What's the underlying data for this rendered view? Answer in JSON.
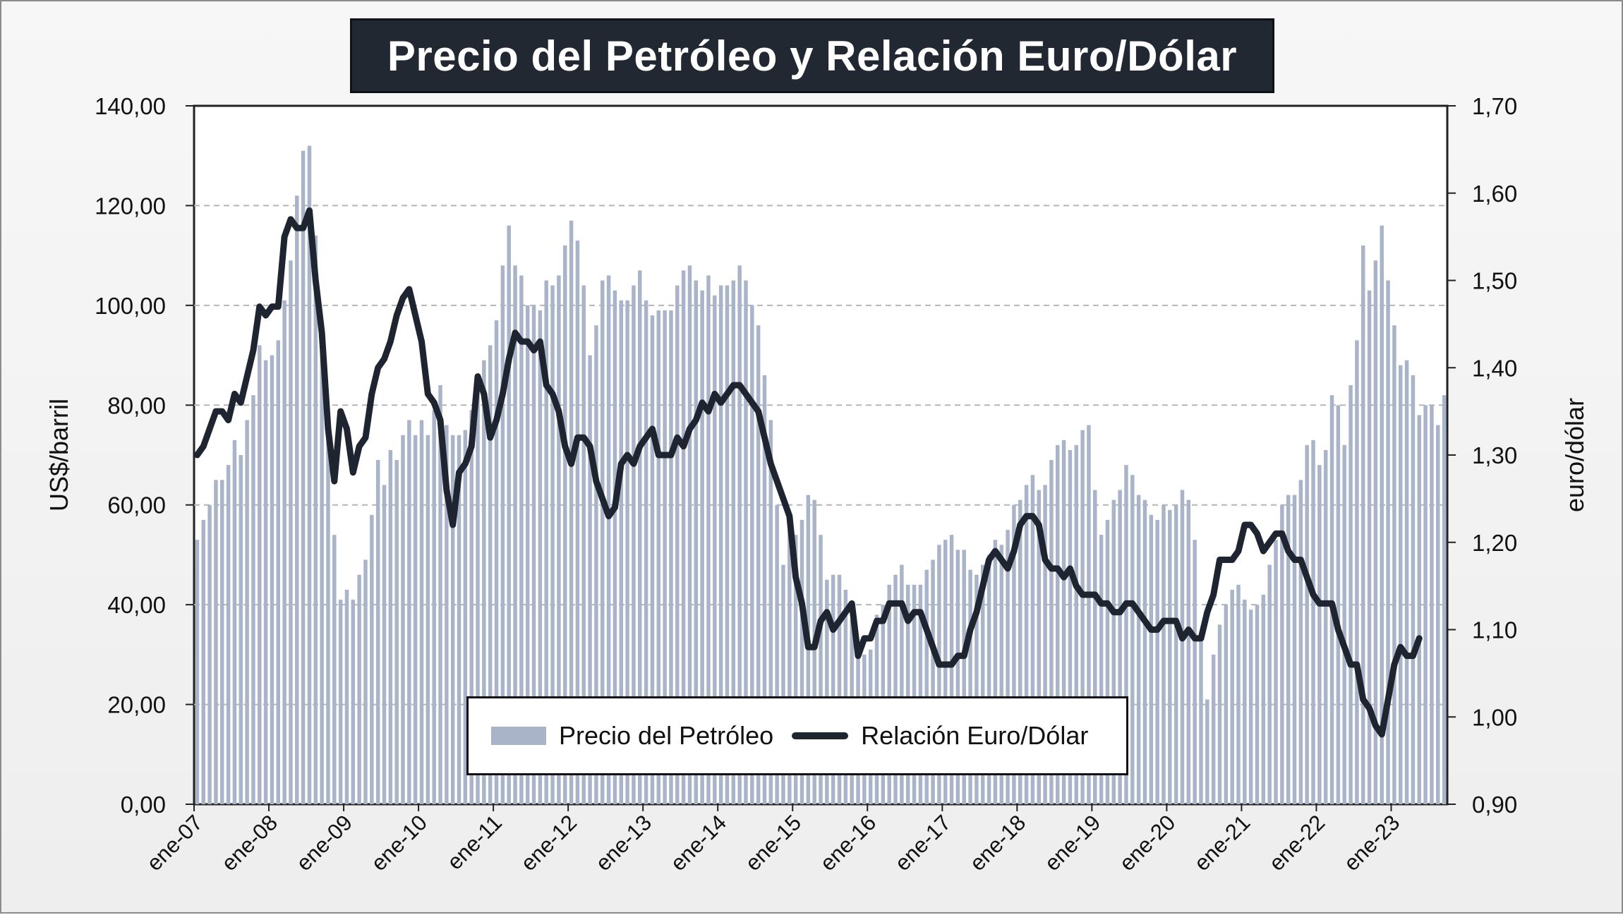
{
  "title": "Precio del Petróleo y Relación Euro/Dólar",
  "chart_data": {
    "type": "bar+line",
    "title": "Precio del Petróleo y Relación Euro/Dólar",
    "x_tick_labels": [
      "ene-07",
      "ene-08",
      "ene-09",
      "ene-10",
      "ene-11",
      "ene-12",
      "ene-13",
      "ene-14",
      "ene-15",
      "ene-16",
      "ene-17",
      "ene-18",
      "ene-19",
      "ene-20",
      "ene-21",
      "ene-22",
      "ene-23"
    ],
    "y_left": {
      "label": "US$/barril",
      "range": [
        0,
        140
      ],
      "ticks": [
        "0,00",
        "20,00",
        "40,00",
        "60,00",
        "80,00",
        "100,00",
        "120,00",
        "140,00"
      ]
    },
    "y_right": {
      "label": "euro/dólar",
      "range": [
        0.9,
        1.7
      ],
      "ticks": [
        "0,90",
        "1,00",
        "1,10",
        "1,20",
        "1,30",
        "1,40",
        "1,50",
        "1,60",
        "1,70"
      ]
    },
    "grid": "horizontal dashed",
    "legend": "bottom-center",
    "series": [
      {
        "name": "Precio del Petróleo",
        "kind": "bar",
        "axis": "left",
        "color": "#aab4c8",
        "values": [
          53,
          57,
          60,
          65,
          65,
          68,
          73,
          70,
          77,
          82,
          92,
          89,
          90,
          93,
          101,
          109,
          122,
          131,
          132,
          114,
          95,
          74,
          54,
          41,
          43,
          41,
          46,
          49,
          58,
          69,
          64,
          71,
          69,
          74,
          77,
          74,
          77,
          74,
          79,
          84,
          76,
          74,
          74,
          75,
          79,
          84,
          89,
          92,
          97,
          108,
          116,
          108,
          106,
          100,
          100,
          99,
          105,
          104,
          106,
          112,
          117,
          113,
          104,
          90,
          96,
          105,
          106,
          103,
          101,
          101,
          104,
          107,
          101,
          98,
          99,
          99,
          99,
          104,
          107,
          108,
          105,
          103,
          106,
          102,
          104,
          104,
          105,
          108,
          105,
          100,
          96,
          86,
          77,
          60,
          48,
          55,
          54,
          57,
          62,
          61,
          54,
          45,
          46,
          46,
          43,
          37,
          31,
          30,
          31,
          38,
          40,
          44,
          46,
          48,
          44,
          44,
          44,
          47,
          49,
          52,
          53,
          54,
          51,
          51,
          47,
          46,
          48,
          50,
          53,
          52,
          55,
          60,
          61,
          64,
          66,
          63,
          64,
          69,
          72,
          73,
          71,
          72,
          75,
          76,
          63,
          54,
          57,
          61,
          63,
          68,
          66,
          62,
          61,
          58,
          57,
          60,
          59,
          60,
          63,
          61,
          53,
          34,
          21,
          30,
          36,
          40,
          43,
          44,
          41,
          39,
          40,
          42,
          48,
          53,
          60,
          62,
          62,
          65,
          72,
          73,
          68,
          71,
          82,
          80,
          72,
          84,
          93,
          112,
          103,
          109,
          116,
          105,
          96,
          88,
          89,
          86,
          78,
          80,
          80,
          76,
          82
        ]
      },
      {
        "name": "Relación Euro/Dólar",
        "kind": "line",
        "axis": "right",
        "color": "#1f2530",
        "values": [
          1.3,
          1.31,
          1.33,
          1.35,
          1.35,
          1.34,
          1.37,
          1.36,
          1.39,
          1.42,
          1.47,
          1.46,
          1.47,
          1.47,
          1.55,
          1.57,
          1.56,
          1.56,
          1.58,
          1.5,
          1.44,
          1.33,
          1.27,
          1.35,
          1.33,
          1.28,
          1.31,
          1.32,
          1.37,
          1.4,
          1.41,
          1.43,
          1.46,
          1.48,
          1.49,
          1.46,
          1.43,
          1.37,
          1.36,
          1.34,
          1.26,
          1.22,
          1.28,
          1.29,
          1.31,
          1.39,
          1.37,
          1.32,
          1.34,
          1.37,
          1.41,
          1.44,
          1.43,
          1.43,
          1.42,
          1.43,
          1.38,
          1.37,
          1.35,
          1.31,
          1.29,
          1.32,
          1.32,
          1.31,
          1.27,
          1.25,
          1.23,
          1.24,
          1.29,
          1.3,
          1.29,
          1.31,
          1.32,
          1.33,
          1.3,
          1.3,
          1.3,
          1.32,
          1.31,
          1.33,
          1.34,
          1.36,
          1.35,
          1.37,
          1.36,
          1.37,
          1.38,
          1.38,
          1.37,
          1.36,
          1.35,
          1.32,
          1.29,
          1.27,
          1.25,
          1.23,
          1.16,
          1.13,
          1.08,
          1.08,
          1.11,
          1.12,
          1.1,
          1.11,
          1.12,
          1.13,
          1.07,
          1.09,
          1.09,
          1.11,
          1.11,
          1.13,
          1.13,
          1.13,
          1.11,
          1.12,
          1.12,
          1.1,
          1.08,
          1.06,
          1.06,
          1.06,
          1.07,
          1.07,
          1.1,
          1.12,
          1.15,
          1.18,
          1.19,
          1.18,
          1.17,
          1.19,
          1.22,
          1.23,
          1.23,
          1.22,
          1.18,
          1.17,
          1.17,
          1.16,
          1.17,
          1.15,
          1.14,
          1.14,
          1.14,
          1.13,
          1.13,
          1.12,
          1.12,
          1.13,
          1.13,
          1.12,
          1.11,
          1.1,
          1.1,
          1.11,
          1.11,
          1.11,
          1.09,
          1.1,
          1.09,
          1.09,
          1.12,
          1.14,
          1.18,
          1.18,
          1.18,
          1.19,
          1.22,
          1.22,
          1.21,
          1.19,
          1.2,
          1.21,
          1.21,
          1.19,
          1.18,
          1.18,
          1.16,
          1.14,
          1.13,
          1.13,
          1.13,
          1.1,
          1.08,
          1.06,
          1.06,
          1.02,
          1.01,
          0.99,
          0.98,
          1.02,
          1.06,
          1.08,
          1.07,
          1.07,
          1.09
        ]
      }
    ]
  }
}
